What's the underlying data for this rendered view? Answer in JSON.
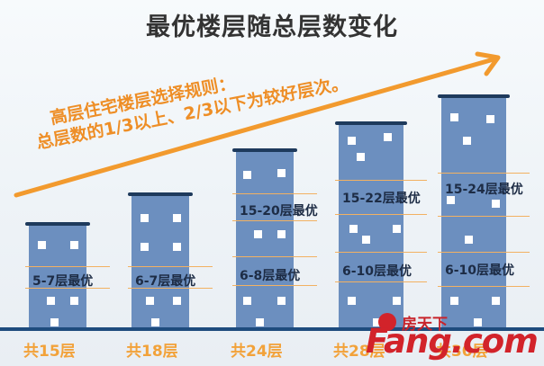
{
  "title": "最优楼层随总层数变化",
  "rule": {
    "line1": "高层住宅楼层选择规则：",
    "line2": "总层数的1/3以上、2/3以下为较好层次。"
  },
  "buildings": [
    {
      "total_label": "共15层",
      "bands": [
        "5-7层最优"
      ]
    },
    {
      "total_label": "共18层",
      "bands": [
        "6-7层最优"
      ]
    },
    {
      "total_label": "共24层",
      "bands": [
        "15-20层最优",
        "6-8层最优"
      ]
    },
    {
      "total_label": "共28层",
      "bands": [
        "15-22层最优",
        "6-10层最优"
      ]
    },
    {
      "total_label": "共30层",
      "bands": [
        "15-24层最优",
        "6-10层最优"
      ]
    }
  ],
  "watermark": {
    "cn": "房天下",
    "en": "Fang.com"
  },
  "colors": {
    "building": "#6c8fbf",
    "accent": "#f29a2e",
    "roof": "#1e3a5c"
  }
}
